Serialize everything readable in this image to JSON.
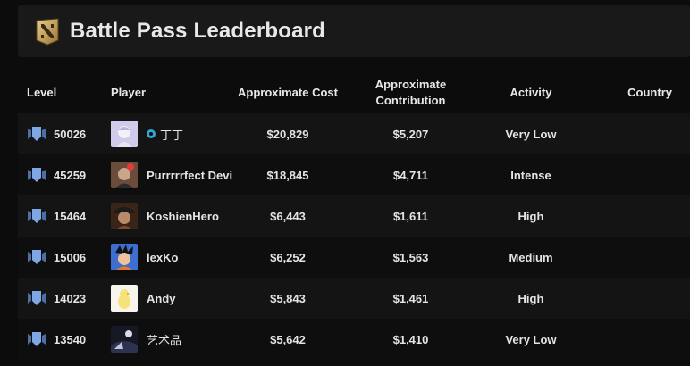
{
  "header": {
    "title": "Battle Pass Leaderboard"
  },
  "columns": {
    "level": "Level",
    "player": "Player",
    "cost": "Approximate Cost",
    "contribution_line1": "Approximate",
    "contribution_line2": "Contribution",
    "activity": "Activity",
    "country": "Country"
  },
  "rows": [
    {
      "level": "50026",
      "player": "丁丁",
      "plus": true,
      "cost": "$20,829",
      "contribution": "$5,207",
      "activity": "Very Low",
      "country": "",
      "avatar_color": "#c9c6ea"
    },
    {
      "level": "45259",
      "player": "Purrrrrfect Devi",
      "plus": false,
      "cost": "$18,845",
      "contribution": "$4,711",
      "activity": "Intense",
      "country": "",
      "avatar_color": "#7a5a48"
    },
    {
      "level": "15464",
      "player": "KoshienHero",
      "plus": false,
      "cost": "$6,443",
      "contribution": "$1,611",
      "activity": "High",
      "country": "",
      "avatar_color": "#5b3a2a"
    },
    {
      "level": "15006",
      "player": "lexKo",
      "plus": false,
      "cost": "$6,252",
      "contribution": "$1,563",
      "activity": "Medium",
      "country": "",
      "avatar_color": "#3e6fd0"
    },
    {
      "level": "14023",
      "player": "Andy",
      "plus": false,
      "cost": "$5,843",
      "contribution": "$1,461",
      "activity": "High",
      "country": "",
      "avatar_color": "#f4f1e6"
    },
    {
      "level": "13540",
      "player": "艺术品",
      "plus": false,
      "cost": "$5,642",
      "contribution": "$1,410",
      "activity": "Very Low",
      "country": "",
      "avatar_color": "#1b1d2a"
    }
  ],
  "colors": {
    "background": "#0c0c0c",
    "header_bg": "#191919",
    "row_alt": "#141414",
    "badge_blue": "#7ea7e4",
    "logo_gold": "#c9a55a"
  },
  "icons": {
    "logo": "battle-pass-logo-icon",
    "level_badge": "level-badge-icon",
    "plus": "dota-plus-icon"
  }
}
